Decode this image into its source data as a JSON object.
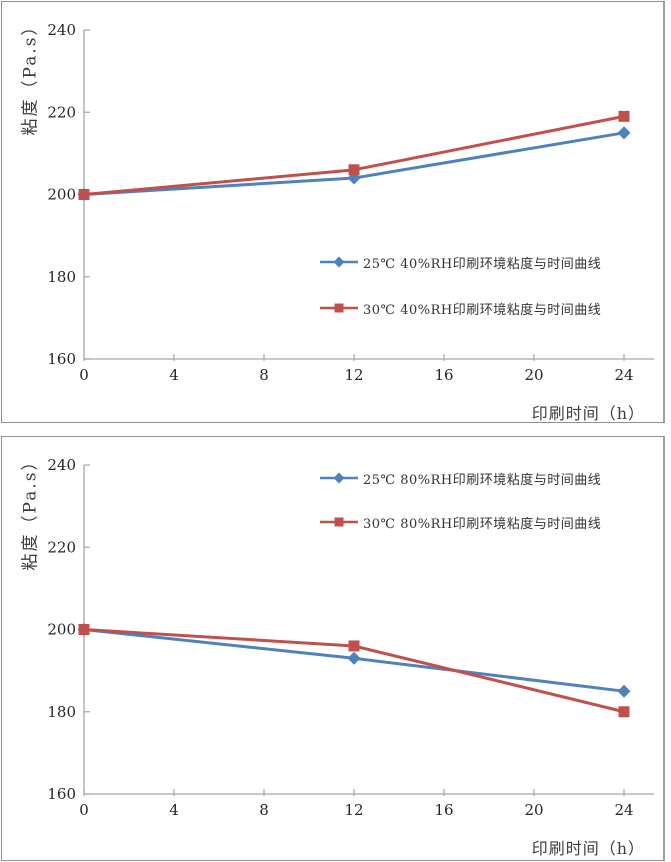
{
  "styles": {
    "background": "#ffffff",
    "panel_border_color": "#8f8f8f",
    "axis_color": "#a6a6a6",
    "tick_label_color": "#262626",
    "axis_title_color": "#3d3d3d",
    "legend_text_color": "#333333",
    "series_blue": "#4F81BD",
    "series_red": "#C0504D"
  },
  "chart_data": [
    {
      "type": "line",
      "x": [
        0,
        12,
        24
      ],
      "series": [
        {
          "name": "25℃ 40%RH印刷环境粘度与时间曲线",
          "values": [
            200,
            204,
            215
          ],
          "color": "#4F81BD",
          "marker": "diamond"
        },
        {
          "name": "30℃ 40%RH印刷环境粘度与时间曲线",
          "values": [
            200,
            206,
            219
          ],
          "color": "#C0504D",
          "marker": "square"
        }
      ],
      "xlabel": "印刷时间（h）",
      "ylabel": "粘度（Pa.s）",
      "xticks": [
        0,
        4,
        8,
        12,
        16,
        20,
        24
      ],
      "yticks": [
        160,
        180,
        200,
        220,
        240
      ],
      "xlim": [
        0,
        24
      ],
      "ylim": [
        160,
        240
      ],
      "grid": false,
      "legend_position": "middle-right-inside"
    },
    {
      "type": "line",
      "x": [
        0,
        12,
        24
      ],
      "series": [
        {
          "name": "25℃ 80%RH印刷环境粘度与时间曲线",
          "values": [
            200,
            193,
            185
          ],
          "color": "#4F81BD",
          "marker": "diamond"
        },
        {
          "name": "30℃ 80%RH印刷环境粘度与时间曲线",
          "values": [
            200,
            196,
            180
          ],
          "color": "#C0504D",
          "marker": "square"
        }
      ],
      "xlabel": "印刷时间（h）",
      "ylabel": "粘度（Pa.s）",
      "xticks": [
        0,
        4,
        8,
        12,
        16,
        20,
        24
      ],
      "yticks": [
        160,
        180,
        200,
        220,
        240
      ],
      "xlim": [
        0,
        24
      ],
      "ylim": [
        160,
        240
      ],
      "grid": false,
      "legend_position": "top-right-inside"
    }
  ]
}
